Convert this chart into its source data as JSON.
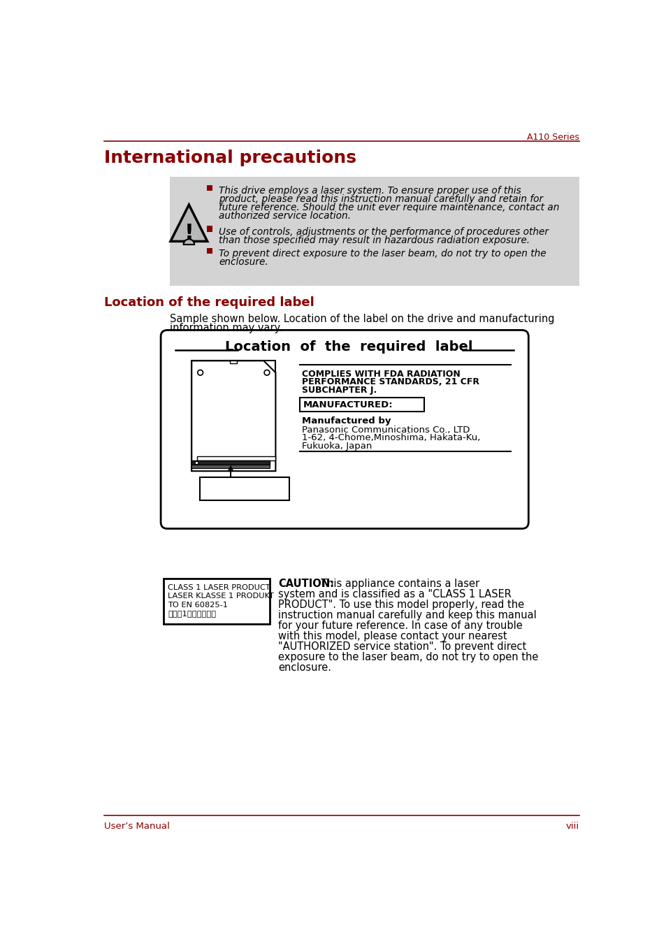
{
  "page_title": "A110 Series",
  "section1_title": "International precautions",
  "section2_title": "Location of the required label",
  "red_color": "#8B0000",
  "bullet_color": "#8B0000",
  "bg_gray": "#D3D3D3",
  "b1_lines": [
    "This drive employs a laser system. To ensure proper use of this",
    "product, please read this instruction manual carefully and retain for",
    "future reference. Should the unit ever require maintenance, contact an",
    "authorized service location."
  ],
  "b2_lines": [
    "Use of controls, adjustments or the performance of procedures other",
    "than those specified may result in hazardous radiation exposure."
  ],
  "b3_lines": [
    "To prevent direct exposure to the laser beam, do not try to open the",
    "enclosure."
  ],
  "sample_text_line1": "Sample shown below. Location of the label on the drive and manufacturing",
  "sample_text_line2": "information may vary.",
  "diagram_title": "Location  of  the  required  label",
  "fda_line1": "COMPLIES WITH FDA RADIATION",
  "fda_line2": "PERFORMANCE STANDARDS, 21 CFR",
  "fda_line3": "SUBCHAPTER J.",
  "manufactured_label": "MANUFACTURED:",
  "mfr_by": "Manufactured by",
  "mfr_line1": "Panasonic Communications Co., LTD",
  "mfr_line2": "1-62, 4-Chome,Minoshima, Hakata-Ku,",
  "mfr_line3": "Fukuoka, Japan",
  "class1_line1": "CLASS 1 LASER PRODUCT",
  "class1_line2": "LASER KLASSE 1 PRODUKT",
  "class1_line3": "TO EN 60825-1",
  "class1_line4": "クラス1レーザー製品",
  "caution_bold": "CAUTION:",
  "caution_lines": [
    "CAUTION: This appliance contains a laser",
    "system and is classified as a \"CLASS 1 LASER",
    "PRODUCT\". To use this model properly, read the",
    "instruction manual carefully and keep this manual",
    "for your future reference. In case of any trouble",
    "with this model, please contact your nearest",
    "\"AUTHORIZED service station\". To prevent direct",
    "exposure to the laser beam, do not try to open the",
    "enclosure."
  ],
  "footer_left": "User’s Manual",
  "footer_right": "viii"
}
